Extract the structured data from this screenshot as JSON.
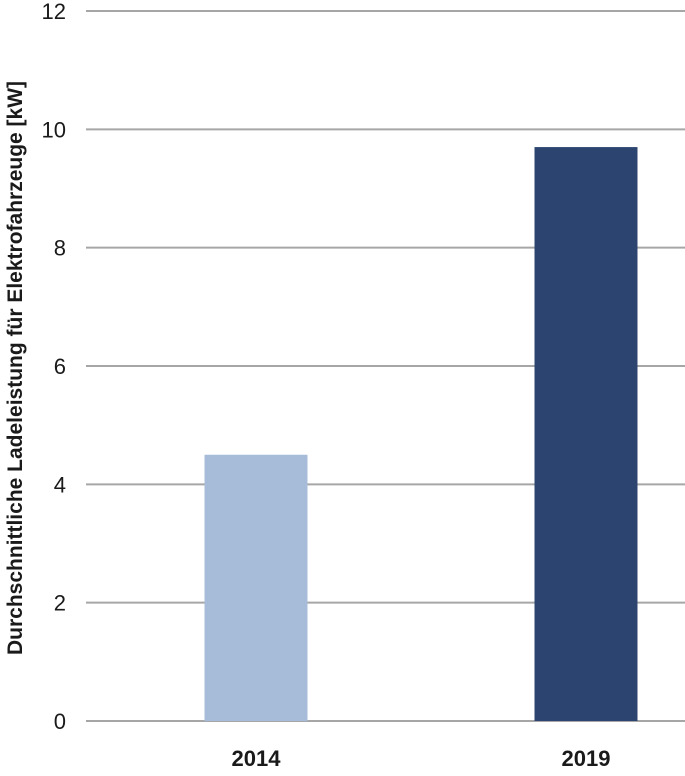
{
  "chart_data": {
    "type": "bar",
    "title": "",
    "xlabel": "",
    "ylabel": "Durchschnittliche Ladeleistung für Elektrofahrzeuge [kW]",
    "categories": [
      "2014",
      "2019"
    ],
    "values": [
      4.5,
      9.7
    ],
    "colors": [
      "#a6bcd9",
      "#2b4570"
    ],
    "ylim": [
      0,
      12
    ],
    "yticks": [
      0,
      2,
      4,
      6,
      8,
      10,
      12
    ],
    "grid": true,
    "legend": "none"
  }
}
